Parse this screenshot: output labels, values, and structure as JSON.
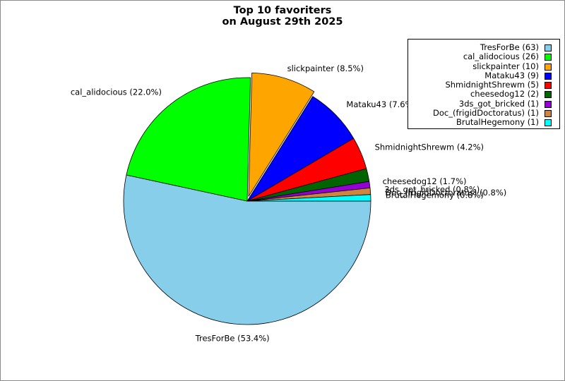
{
  "chart_data": {
    "type": "pie",
    "title_lines": [
      "Top 10 favoriters",
      "on August 29th 2025"
    ],
    "series": [
      {
        "name": "TresForBe",
        "value": 63,
        "label": "TresForBe (53.4%)",
        "legend": "TresForBe (63)",
        "color": "#87ceeb"
      },
      {
        "name": "cal_alidocious",
        "value": 26,
        "label": "cal_alidocious (22.0%)",
        "legend": "cal_alidocious (26)",
        "color": "#00ff00"
      },
      {
        "name": "slickpainter",
        "value": 10,
        "label": "slickpainter (8.5%)",
        "legend": "slickpainter (10)",
        "color": "#ffa500"
      },
      {
        "name": "Mataku43",
        "value": 9,
        "label": "Mataku43 (7.6%)",
        "legend": "Mataku43 (9)",
        "color": "#0000ff"
      },
      {
        "name": "ShmidnightShrewm",
        "value": 5,
        "label": "ShmidnightShrewm (4.2%)",
        "legend": "ShmidnightShrewm (5)",
        "color": "#ff0000"
      },
      {
        "name": "cheesedog12",
        "value": 2,
        "label": "cheesedog12 (1.7%)",
        "legend": "cheesedog12 (2)",
        "color": "#006400"
      },
      {
        "name": "3ds_got_bricked",
        "value": 1,
        "label": "3ds_got_bricked (0.8%)",
        "legend": "3ds_got_bricked (1)",
        "color": "#9400d3"
      },
      {
        "name": "Doc_(frigidDoctoratus)",
        "value": 1,
        "label": "Doc_(frigidDoctoratus) (0.8%)",
        "legend": "Doc_(frigidDoctoratus) (1)",
        "color": "#cd853f"
      },
      {
        "name": "BrutalHegemony",
        "value": 1,
        "label": "BrutalHegemony (0.8%)",
        "legend": "BrutalHegemony (1)",
        "color": "#00ffff"
      }
    ],
    "legend_position": "top-right"
  }
}
